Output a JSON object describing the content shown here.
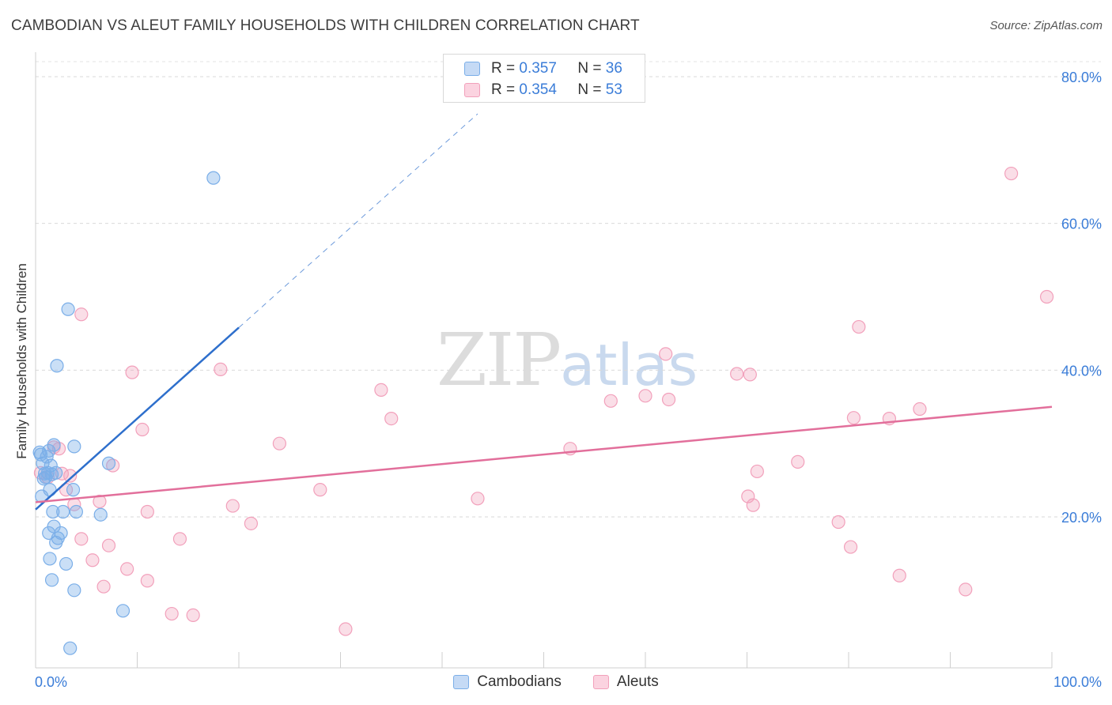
{
  "header": {
    "title": "CAMBODIAN VS ALEUT FAMILY HOUSEHOLDS WITH CHILDREN CORRELATION CHART",
    "source": "Source: ZipAtlas.com"
  },
  "watermark": {
    "zip": "ZIP",
    "atlas": "atlas"
  },
  "legend": {
    "r_label": "R =",
    "n_label": "N =",
    "series": [
      {
        "r": "0.357",
        "n": "36"
      },
      {
        "r": "0.354",
        "n": "53"
      }
    ]
  },
  "bottom_legend": {
    "cambodians": "Cambodians",
    "aleuts": "Aleuts"
  },
  "chart_data": {
    "type": "scatter",
    "title": "CAMBODIAN VS ALEUT FAMILY HOUSEHOLDS WITH CHILDREN CORRELATION CHART",
    "xlabel": "",
    "ylabel": "Family Households with Children",
    "xlim": [
      0,
      100
    ],
    "ylim": [
      0,
      85
    ],
    "x_tick_labels": [
      "0.0%",
      "100.0%"
    ],
    "y_ticks": [
      20,
      40,
      60,
      80
    ],
    "y_tick_labels": [
      "20.0%",
      "40.0%",
      "60.0%",
      "80.0%"
    ],
    "colors": {
      "cambodians": "#7aaee8",
      "aleuts": "#f2a0bb",
      "cambodians_line": "#2e6fcc",
      "aleuts_line": "#e26f9b"
    },
    "series": [
      {
        "name": "Cambodians",
        "R": 0.357,
        "N": 36,
        "trend": {
          "x0": 0,
          "y0": 21.0,
          "x1": 20,
          "y1": 45.8,
          "dash_to_x": 43.5
        },
        "points": [
          [
            0.5,
            28.5
          ],
          [
            0.7,
            27.3
          ],
          [
            0.9,
            25.9
          ],
          [
            1.0,
            25.4
          ],
          [
            1.1,
            28.2
          ],
          [
            1.2,
            26.0
          ],
          [
            1.3,
            29.0
          ],
          [
            1.5,
            27.0
          ],
          [
            1.6,
            25.8
          ],
          [
            1.8,
            29.8
          ],
          [
            2.0,
            26.0
          ],
          [
            0.4,
            28.8
          ],
          [
            0.6,
            22.8
          ],
          [
            1.4,
            23.7
          ],
          [
            3.2,
            48.3
          ],
          [
            2.1,
            40.6
          ],
          [
            17.5,
            66.2
          ],
          [
            3.8,
            29.6
          ],
          [
            7.2,
            27.3
          ],
          [
            3.7,
            23.7
          ],
          [
            2.7,
            20.7
          ],
          [
            4.0,
            20.7
          ],
          [
            6.4,
            20.3
          ],
          [
            1.7,
            20.7
          ],
          [
            1.8,
            18.7
          ],
          [
            1.3,
            17.8
          ],
          [
            2.2,
            17.1
          ],
          [
            2.5,
            17.8
          ],
          [
            2.0,
            16.5
          ],
          [
            1.4,
            14.3
          ],
          [
            3.0,
            13.6
          ],
          [
            1.6,
            11.4
          ],
          [
            3.8,
            10.0
          ],
          [
            8.6,
            7.2
          ],
          [
            3.4,
            2.1
          ],
          [
            0.8,
            25.2
          ]
        ]
      },
      {
        "name": "Aleuts",
        "R": 0.354,
        "N": 53,
        "trend": {
          "x0": 0,
          "y0": 22.0,
          "x1": 100,
          "y1": 35.0
        },
        "points": [
          [
            0.5,
            26.0
          ],
          [
            1.8,
            29.5
          ],
          [
            2.3,
            29.3
          ],
          [
            3.0,
            23.7
          ],
          [
            3.4,
            25.6
          ],
          [
            3.8,
            21.7
          ],
          [
            4.5,
            47.6
          ],
          [
            7.6,
            27.0
          ],
          [
            9.5,
            39.7
          ],
          [
            10.5,
            31.9
          ],
          [
            11.0,
            20.7
          ],
          [
            6.3,
            22.1
          ],
          [
            4.5,
            17.0
          ],
          [
            5.6,
            14.1
          ],
          [
            7.2,
            16.1
          ],
          [
            6.7,
            10.5
          ],
          [
            9.0,
            12.9
          ],
          [
            11.0,
            11.3
          ],
          [
            14.2,
            17.0
          ],
          [
            13.4,
            6.8
          ],
          [
            15.5,
            6.6
          ],
          [
            18.2,
            40.1
          ],
          [
            19.4,
            21.5
          ],
          [
            21.2,
            19.1
          ],
          [
            24.0,
            30.0
          ],
          [
            28.0,
            23.7
          ],
          [
            30.5,
            4.7
          ],
          [
            34.0,
            37.3
          ],
          [
            35.0,
            33.4
          ],
          [
            43.5,
            22.5
          ],
          [
            52.6,
            29.3
          ],
          [
            56.6,
            35.8
          ],
          [
            60.0,
            36.5
          ],
          [
            62.3,
            36.0
          ],
          [
            62.0,
            42.2
          ],
          [
            69.0,
            39.5
          ],
          [
            70.3,
            39.4
          ],
          [
            70.1,
            22.8
          ],
          [
            70.6,
            21.6
          ],
          [
            71.0,
            26.2
          ],
          [
            75.0,
            27.5
          ],
          [
            79.0,
            19.3
          ],
          [
            80.2,
            15.9
          ],
          [
            80.5,
            33.5
          ],
          [
            81.0,
            45.9
          ],
          [
            84.0,
            33.4
          ],
          [
            85.0,
            12.0
          ],
          [
            87.0,
            34.7
          ],
          [
            91.5,
            10.1
          ],
          [
            96.0,
            66.8
          ],
          [
            99.5,
            50.0
          ],
          [
            1.2,
            25.4
          ],
          [
            2.6,
            25.9
          ]
        ]
      }
    ]
  }
}
